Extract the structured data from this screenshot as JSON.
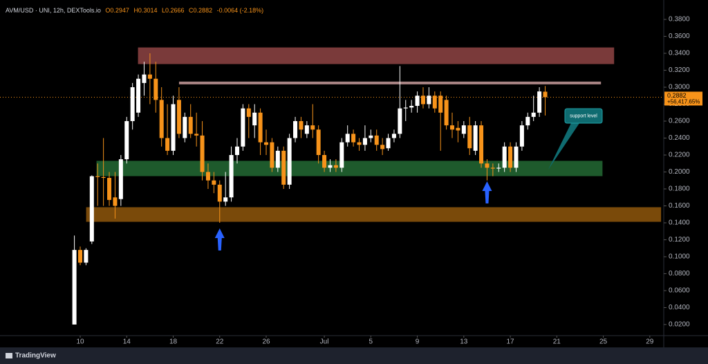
{
  "chart_data": {
    "type": "candlestick",
    "header": {
      "symbol": "AVM/USD · UNI, 12h, DEXTools.io",
      "ohlc": [
        "O0.2947",
        "H0.3014",
        "L0.2666",
        "C0.2882"
      ],
      "change": "-0.0064 (-2.18%)"
    },
    "x": [
      9.5,
      10,
      10.5,
      11,
      11.5,
      12,
      12.5,
      13,
      13.5,
      14,
      14.5,
      15,
      15.5,
      16,
      16.5,
      17,
      17.5,
      18,
      18.5,
      19,
      19.5,
      20,
      20.5,
      21,
      21.5,
      22,
      22.5,
      23,
      23.5,
      24,
      24.5,
      25,
      25.5,
      26,
      26.5,
      27,
      27.5,
      28,
      28.5,
      29,
      29.5,
      30,
      30.5,
      31,
      31.5,
      32,
      32.5,
      33,
      33.5,
      34,
      34.5,
      35,
      35.5,
      36,
      36.5,
      37,
      37.5,
      38,
      38.5,
      39,
      39.5,
      40,
      40.5,
      41,
      41.5,
      42,
      42.5,
      43,
      43.5,
      44,
      44.5,
      45,
      45.5,
      46,
      46.5,
      47,
      47.5,
      48,
      48.5,
      49,
      49.5,
      50
    ],
    "open": [
      0.02,
      0.108,
      0.093,
      0.118,
      0.195,
      0.194,
      0.193,
      0.17,
      0.168,
      0.215,
      0.26,
      0.27,
      0.305,
      0.315,
      0.31,
      0.285,
      0.24,
      0.225,
      0.285,
      0.24,
      0.265,
      0.245,
      0.243,
      0.2,
      0.19,
      0.185,
      0.165,
      0.17,
      0.22,
      0.23,
      0.275,
      0.255,
      0.27,
      0.235,
      0.235,
      0.205,
      0.225,
      0.185,
      0.24,
      0.26,
      0.245,
      0.255,
      0.25,
      0.22,
      0.205,
      0.208,
      0.205,
      0.235,
      0.245,
      0.235,
      0.232,
      0.24,
      0.243,
      0.232,
      0.228,
      0.24,
      0.245,
      0.275,
      0.276,
      0.278,
      0.29,
      0.28,
      0.29,
      0.29,
      0.285,
      0.255,
      0.252,
      0.245,
      0.255,
      0.225,
      0.255,
      0.21,
      0.205,
      0.204,
      0.205,
      0.23,
      0.205,
      0.23,
      0.255,
      0.265,
      0.27,
      0.2947
    ],
    "high": [
      0.125,
      0.112,
      0.11,
      0.196,
      0.21,
      0.24,
      0.2,
      0.2,
      0.22,
      0.265,
      0.305,
      0.315,
      0.33,
      0.34,
      0.33,
      0.3,
      0.28,
      0.29,
      0.3,
      0.27,
      0.28,
      0.27,
      0.26,
      0.21,
      0.2,
      0.19,
      0.2,
      0.23,
      0.24,
      0.28,
      0.28,
      0.28,
      0.275,
      0.25,
      0.24,
      0.23,
      0.23,
      0.245,
      0.265,
      0.265,
      0.26,
      0.28,
      0.255,
      0.225,
      0.215,
      0.215,
      0.24,
      0.255,
      0.25,
      0.24,
      0.255,
      0.25,
      0.25,
      0.24,
      0.245,
      0.25,
      0.325,
      0.285,
      0.285,
      0.295,
      0.3,
      0.3,
      0.295,
      0.295,
      0.29,
      0.27,
      0.26,
      0.26,
      0.265,
      0.26,
      0.26,
      0.215,
      0.21,
      0.21,
      0.235,
      0.235,
      0.235,
      0.26,
      0.27,
      0.29,
      0.3,
      0.3014
    ],
    "low": [
      0.02,
      0.09,
      0.09,
      0.115,
      0.16,
      0.16,
      0.16,
      0.145,
      0.16,
      0.21,
      0.25,
      0.265,
      0.29,
      0.28,
      0.27,
      0.23,
      0.22,
      0.22,
      0.24,
      0.235,
      0.24,
      0.23,
      0.19,
      0.18,
      0.175,
      0.14,
      0.16,
      0.165,
      0.21,
      0.225,
      0.24,
      0.24,
      0.22,
      0.22,
      0.2,
      0.2,
      0.18,
      0.18,
      0.235,
      0.24,
      0.24,
      0.24,
      0.21,
      0.2,
      0.2,
      0.2,
      0.2,
      0.23,
      0.23,
      0.225,
      0.225,
      0.235,
      0.225,
      0.22,
      0.225,
      0.235,
      0.24,
      0.26,
      0.27,
      0.27,
      0.275,
      0.275,
      0.27,
      0.225,
      0.25,
      0.24,
      0.235,
      0.24,
      0.22,
      0.22,
      0.205,
      0.19,
      0.195,
      0.2,
      0.2,
      0.2,
      0.2,
      0.225,
      0.25,
      0.26,
      0.265,
      0.2666
    ],
    "close": [
      0.108,
      0.093,
      0.108,
      0.195,
      0.194,
      0.193,
      0.167,
      0.16,
      0.215,
      0.26,
      0.3,
      0.31,
      0.315,
      0.31,
      0.285,
      0.24,
      0.225,
      0.28,
      0.245,
      0.265,
      0.245,
      0.243,
      0.2,
      0.19,
      0.185,
      0.165,
      0.17,
      0.22,
      0.23,
      0.275,
      0.265,
      0.27,
      0.235,
      0.232,
      0.205,
      0.225,
      0.185,
      0.24,
      0.26,
      0.25,
      0.255,
      0.25,
      0.22,
      0.205,
      0.208,
      0.205,
      0.235,
      0.245,
      0.235,
      0.232,
      0.24,
      0.243,
      0.232,
      0.227,
      0.24,
      0.245,
      0.275,
      0.276,
      0.278,
      0.29,
      0.28,
      0.29,
      0.275,
      0.27,
      0.255,
      0.25,
      0.249,
      0.255,
      0.228,
      0.255,
      0.21,
      0.205,
      0.204,
      0.205,
      0.23,
      0.205,
      0.23,
      0.255,
      0.265,
      0.27,
      0.295,
      0.2882
    ],
    "up_color": "#ffffff",
    "down_color": "#f7931a",
    "xlim": [
      3.1,
      60.2
    ],
    "xticks": [
      10,
      14,
      18,
      22,
      26,
      {
        "value": 31,
        "label": "Jul"
      },
      {
        "value": 35,
        "label": "5"
      },
      {
        "value": 39,
        "label": "9"
      },
      {
        "value": 43,
        "label": "13"
      },
      {
        "value": 47,
        "label": "17"
      },
      {
        "value": 51,
        "label": "21"
      },
      {
        "value": 55,
        "label": "25"
      },
      {
        "value": 59,
        "label": "29"
      }
    ],
    "ylim": [
      0.0069,
      0.4029
    ],
    "yticks": [
      {
        "value": 0.02,
        "label": "0.0200"
      },
      {
        "value": 0.04,
        "label": "0.0400"
      },
      {
        "value": 0.06,
        "label": "0.0600"
      },
      {
        "value": 0.08,
        "label": "0.0800"
      },
      {
        "value": 0.1,
        "label": "0.1000"
      },
      {
        "value": 0.12,
        "label": "0.1200"
      },
      {
        "value": 0.14,
        "label": "0.1400"
      },
      {
        "value": 0.16,
        "label": "0.1600"
      },
      {
        "value": 0.18,
        "label": "0.1800"
      },
      {
        "value": 0.2,
        "label": "0.2000"
      },
      {
        "value": 0.22,
        "label": "0.2200"
      },
      {
        "value": 0.24,
        "label": "0.2400"
      },
      {
        "value": 0.26,
        "label": "0.2600"
      },
      {
        "value": 0.28,
        "label": "0.2800"
      },
      {
        "value": 0.3,
        "label": "0.3000"
      },
      {
        "value": 0.32,
        "label": "0.3200"
      },
      {
        "value": 0.34,
        "label": "0.3400"
      },
      {
        "value": 0.36,
        "label": "0.3600"
      },
      {
        "value": 0.38,
        "label": "0.3800"
      }
    ],
    "grid": false,
    "last_price": {
      "value": 0.2882,
      "label": "0.2882"
    },
    "change_label": "+56,417.65%",
    "zones": [
      {
        "low": 0.3277,
        "high": 0.3465,
        "x0": 15.0,
        "x1": 55.9,
        "color": "#7a3a3a"
      },
      {
        "low": 0.1955,
        "high": 0.2127,
        "x0": 11.43,
        "x1": 54.9,
        "color": "#1e5a2c"
      },
      {
        "low": 0.1416,
        "high": 0.158,
        "x0": 10.54,
        "x1": 59.94,
        "color": "#7a4a0a"
      }
    ],
    "levels": [
      {
        "value": 0.305,
        "x0": 18.5,
        "x1": 54.8,
        "color": "#a88484"
      }
    ],
    "arrows": [
      {
        "x": 22,
        "y": 0.1335
      },
      {
        "x": 45,
        "y": 0.189
      }
    ],
    "arrow_color": "#2962ff",
    "annotation": {
      "text": "support level"
    },
    "footer": "TradingView"
  }
}
